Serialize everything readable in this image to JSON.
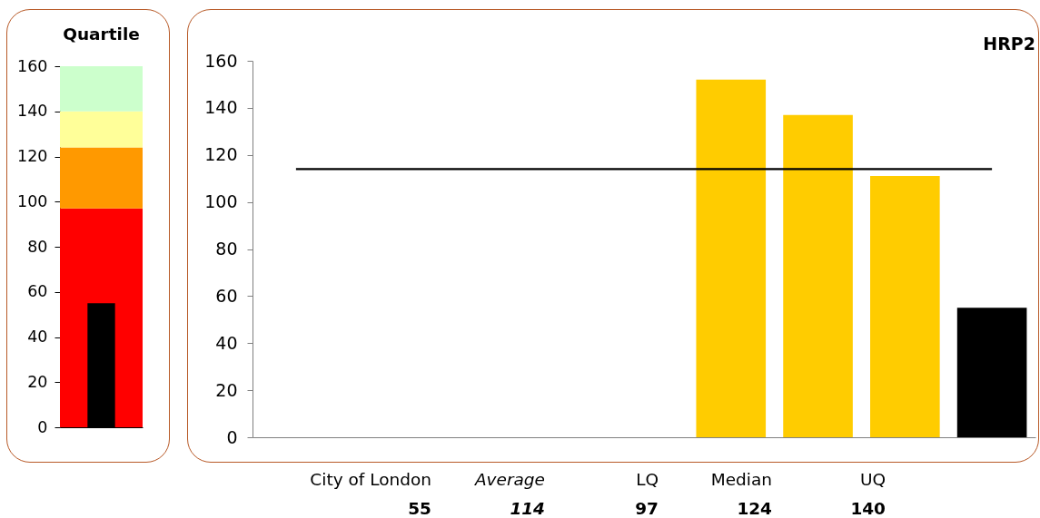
{
  "chart_data": [
    {
      "type": "bar",
      "title": "Quartile",
      "categories": [
        null
      ],
      "values": [
        55
      ],
      "colors": [
        "#000000"
      ],
      "ylim": [
        0,
        160
      ],
      "yticks": [
        0,
        20,
        40,
        60,
        80,
        100,
        120,
        140,
        160
      ],
      "bands": [
        {
          "axis": "y",
          "from": 0,
          "to": 97,
          "color": "#ff0000"
        },
        {
          "axis": "y",
          "from": 97,
          "to": 124,
          "color": "#ff9900"
        },
        {
          "axis": "y",
          "from": 124,
          "to": 140,
          "color": "#ffff99"
        },
        {
          "axis": "y",
          "from": 140,
          "to": 160,
          "color": "#ccffcc"
        }
      ]
    },
    {
      "type": "bar",
      "title": "HRP2",
      "categories": [
        null,
        null,
        null,
        null,
        null,
        null,
        null,
        null,
        null
      ],
      "values": [
        null,
        null,
        null,
        null,
        null,
        152,
        137,
        111,
        55
      ],
      "colors": [
        null,
        null,
        null,
        null,
        null,
        "#ffcc00",
        "#ffcc00",
        "#ffcc00",
        "#000000"
      ],
      "ylim": [
        0,
        160
      ],
      "yticks": [
        0,
        20,
        40,
        60,
        80,
        100,
        120,
        140,
        160
      ],
      "ref_lines": [
        {
          "axis": "y",
          "value": 114,
          "color": "#000000"
        }
      ],
      "annotations": [
        "City of London",
        "Average",
        "LQ",
        "Median",
        "UQ",
        "55",
        "114",
        "97",
        "124",
        "140"
      ]
    }
  ]
}
